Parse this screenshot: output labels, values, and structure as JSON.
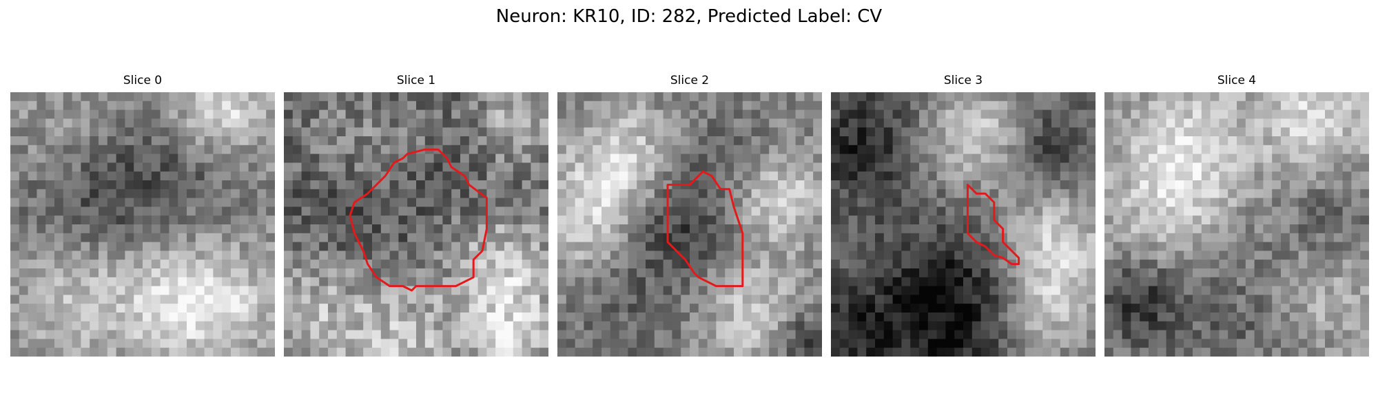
{
  "suptitle": "Neuron: KR10, ID: 282, Predicted Label: CV",
  "contour_color": "#e31a1c",
  "colormap": "gray",
  "panels": [
    {
      "title": "Slice 0",
      "has_contour": false
    },
    {
      "title": "Slice 1",
      "has_contour": true
    },
    {
      "title": "Slice 2",
      "has_contour": true
    },
    {
      "title": "Slice 3",
      "has_contour": true
    },
    {
      "title": "Slice 4",
      "has_contour": false
    }
  ]
}
